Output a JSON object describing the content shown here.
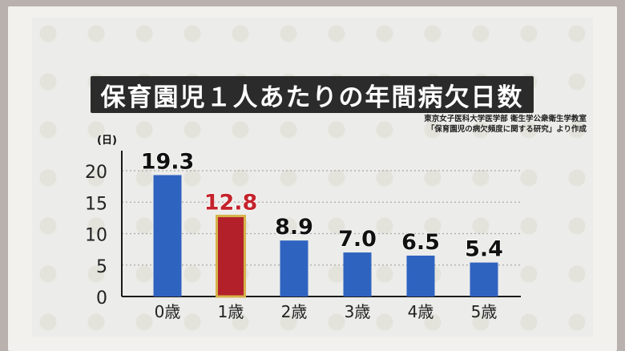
{
  "title": "保育園児１人あたりの年間病欠日数",
  "source_lines": [
    "東京女子医科大学医学部 衛生学公衆衛生学教室",
    "「保育園児の病欠頻度に関する研究」より作成"
  ],
  "unit_label": "(日)",
  "colors": {
    "bar": "#2f63c0",
    "highlight": "#b3202a",
    "highlight_border": "#d6b24a",
    "highlight_label": "#c4232c"
  },
  "chart_data": {
    "type": "bar",
    "title": "保育園児１人あたりの年間病欠日数",
    "ylabel": "(日)",
    "xlabel": "",
    "categories": [
      "0歳",
      "1歳",
      "2歳",
      "3歳",
      "4歳",
      "5歳"
    ],
    "values": [
      19.3,
      12.8,
      8.9,
      7.0,
      6.5,
      5.4
    ],
    "value_labels": [
      "19.3",
      "12.8",
      "8.9",
      "7.0",
      "6.5",
      "5.4"
    ],
    "highlight_index": 1,
    "ylim": [
      0,
      20
    ],
    "yticks": [
      "0",
      "5",
      "10",
      "15",
      "20"
    ],
    "grid": true
  }
}
